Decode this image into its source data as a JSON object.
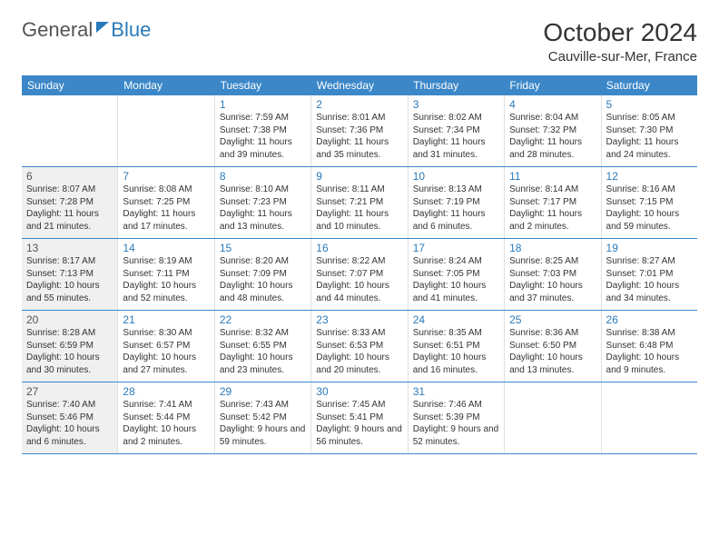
{
  "logo": {
    "general": "General",
    "blue": "Blue"
  },
  "title": "October 2024",
  "location": "Cauville-sur-Mer, France",
  "weekdays": [
    "Sunday",
    "Monday",
    "Tuesday",
    "Wednesday",
    "Thursday",
    "Friday",
    "Saturday"
  ],
  "colors": {
    "header_bg": "#3b87c8",
    "header_text": "#ffffff",
    "day_number": "#2a7ab9",
    "shaded_bg": "#f0f0f0",
    "border": "#3b87c8"
  },
  "weeks": [
    [
      {
        "day": "",
        "sunrise": "",
        "sunset": "",
        "daylight": "",
        "shaded": false,
        "empty": true
      },
      {
        "day": "",
        "sunrise": "",
        "sunset": "",
        "daylight": "",
        "shaded": false,
        "empty": true
      },
      {
        "day": "1",
        "sunrise": "Sunrise: 7:59 AM",
        "sunset": "Sunset: 7:38 PM",
        "daylight": "Daylight: 11 hours and 39 minutes.",
        "shaded": false
      },
      {
        "day": "2",
        "sunrise": "Sunrise: 8:01 AM",
        "sunset": "Sunset: 7:36 PM",
        "daylight": "Daylight: 11 hours and 35 minutes.",
        "shaded": false
      },
      {
        "day": "3",
        "sunrise": "Sunrise: 8:02 AM",
        "sunset": "Sunset: 7:34 PM",
        "daylight": "Daylight: 11 hours and 31 minutes.",
        "shaded": false
      },
      {
        "day": "4",
        "sunrise": "Sunrise: 8:04 AM",
        "sunset": "Sunset: 7:32 PM",
        "daylight": "Daylight: 11 hours and 28 minutes.",
        "shaded": false
      },
      {
        "day": "5",
        "sunrise": "Sunrise: 8:05 AM",
        "sunset": "Sunset: 7:30 PM",
        "daylight": "Daylight: 11 hours and 24 minutes.",
        "shaded": false
      }
    ],
    [
      {
        "day": "6",
        "sunrise": "Sunrise: 8:07 AM",
        "sunset": "Sunset: 7:28 PM",
        "daylight": "Daylight: 11 hours and 21 minutes.",
        "shaded": true
      },
      {
        "day": "7",
        "sunrise": "Sunrise: 8:08 AM",
        "sunset": "Sunset: 7:25 PM",
        "daylight": "Daylight: 11 hours and 17 minutes.",
        "shaded": false
      },
      {
        "day": "8",
        "sunrise": "Sunrise: 8:10 AM",
        "sunset": "Sunset: 7:23 PM",
        "daylight": "Daylight: 11 hours and 13 minutes.",
        "shaded": false
      },
      {
        "day": "9",
        "sunrise": "Sunrise: 8:11 AM",
        "sunset": "Sunset: 7:21 PM",
        "daylight": "Daylight: 11 hours and 10 minutes.",
        "shaded": false
      },
      {
        "day": "10",
        "sunrise": "Sunrise: 8:13 AM",
        "sunset": "Sunset: 7:19 PM",
        "daylight": "Daylight: 11 hours and 6 minutes.",
        "shaded": false
      },
      {
        "day": "11",
        "sunrise": "Sunrise: 8:14 AM",
        "sunset": "Sunset: 7:17 PM",
        "daylight": "Daylight: 11 hours and 2 minutes.",
        "shaded": false
      },
      {
        "day": "12",
        "sunrise": "Sunrise: 8:16 AM",
        "sunset": "Sunset: 7:15 PM",
        "daylight": "Daylight: 10 hours and 59 minutes.",
        "shaded": false
      }
    ],
    [
      {
        "day": "13",
        "sunrise": "Sunrise: 8:17 AM",
        "sunset": "Sunset: 7:13 PM",
        "daylight": "Daylight: 10 hours and 55 minutes.",
        "shaded": true
      },
      {
        "day": "14",
        "sunrise": "Sunrise: 8:19 AM",
        "sunset": "Sunset: 7:11 PM",
        "daylight": "Daylight: 10 hours and 52 minutes.",
        "shaded": false
      },
      {
        "day": "15",
        "sunrise": "Sunrise: 8:20 AM",
        "sunset": "Sunset: 7:09 PM",
        "daylight": "Daylight: 10 hours and 48 minutes.",
        "shaded": false
      },
      {
        "day": "16",
        "sunrise": "Sunrise: 8:22 AM",
        "sunset": "Sunset: 7:07 PM",
        "daylight": "Daylight: 10 hours and 44 minutes.",
        "shaded": false
      },
      {
        "day": "17",
        "sunrise": "Sunrise: 8:24 AM",
        "sunset": "Sunset: 7:05 PM",
        "daylight": "Daylight: 10 hours and 41 minutes.",
        "shaded": false
      },
      {
        "day": "18",
        "sunrise": "Sunrise: 8:25 AM",
        "sunset": "Sunset: 7:03 PM",
        "daylight": "Daylight: 10 hours and 37 minutes.",
        "shaded": false
      },
      {
        "day": "19",
        "sunrise": "Sunrise: 8:27 AM",
        "sunset": "Sunset: 7:01 PM",
        "daylight": "Daylight: 10 hours and 34 minutes.",
        "shaded": false
      }
    ],
    [
      {
        "day": "20",
        "sunrise": "Sunrise: 8:28 AM",
        "sunset": "Sunset: 6:59 PM",
        "daylight": "Daylight: 10 hours and 30 minutes.",
        "shaded": true
      },
      {
        "day": "21",
        "sunrise": "Sunrise: 8:30 AM",
        "sunset": "Sunset: 6:57 PM",
        "daylight": "Daylight: 10 hours and 27 minutes.",
        "shaded": false
      },
      {
        "day": "22",
        "sunrise": "Sunrise: 8:32 AM",
        "sunset": "Sunset: 6:55 PM",
        "daylight": "Daylight: 10 hours and 23 minutes.",
        "shaded": false
      },
      {
        "day": "23",
        "sunrise": "Sunrise: 8:33 AM",
        "sunset": "Sunset: 6:53 PM",
        "daylight": "Daylight: 10 hours and 20 minutes.",
        "shaded": false
      },
      {
        "day": "24",
        "sunrise": "Sunrise: 8:35 AM",
        "sunset": "Sunset: 6:51 PM",
        "daylight": "Daylight: 10 hours and 16 minutes.",
        "shaded": false
      },
      {
        "day": "25",
        "sunrise": "Sunrise: 8:36 AM",
        "sunset": "Sunset: 6:50 PM",
        "daylight": "Daylight: 10 hours and 13 minutes.",
        "shaded": false
      },
      {
        "day": "26",
        "sunrise": "Sunrise: 8:38 AM",
        "sunset": "Sunset: 6:48 PM",
        "daylight": "Daylight: 10 hours and 9 minutes.",
        "shaded": false
      }
    ],
    [
      {
        "day": "27",
        "sunrise": "Sunrise: 7:40 AM",
        "sunset": "Sunset: 5:46 PM",
        "daylight": "Daylight: 10 hours and 6 minutes.",
        "shaded": true
      },
      {
        "day": "28",
        "sunrise": "Sunrise: 7:41 AM",
        "sunset": "Sunset: 5:44 PM",
        "daylight": "Daylight: 10 hours and 2 minutes.",
        "shaded": false
      },
      {
        "day": "29",
        "sunrise": "Sunrise: 7:43 AM",
        "sunset": "Sunset: 5:42 PM",
        "daylight": "Daylight: 9 hours and 59 minutes.",
        "shaded": false
      },
      {
        "day": "30",
        "sunrise": "Sunrise: 7:45 AM",
        "sunset": "Sunset: 5:41 PM",
        "daylight": "Daylight: 9 hours and 56 minutes.",
        "shaded": false
      },
      {
        "day": "31",
        "sunrise": "Sunrise: 7:46 AM",
        "sunset": "Sunset: 5:39 PM",
        "daylight": "Daylight: 9 hours and 52 minutes.",
        "shaded": false
      },
      {
        "day": "",
        "sunrise": "",
        "sunset": "",
        "daylight": "",
        "shaded": false,
        "empty": true
      },
      {
        "day": "",
        "sunrise": "",
        "sunset": "",
        "daylight": "",
        "shaded": false,
        "empty": true
      }
    ]
  ]
}
